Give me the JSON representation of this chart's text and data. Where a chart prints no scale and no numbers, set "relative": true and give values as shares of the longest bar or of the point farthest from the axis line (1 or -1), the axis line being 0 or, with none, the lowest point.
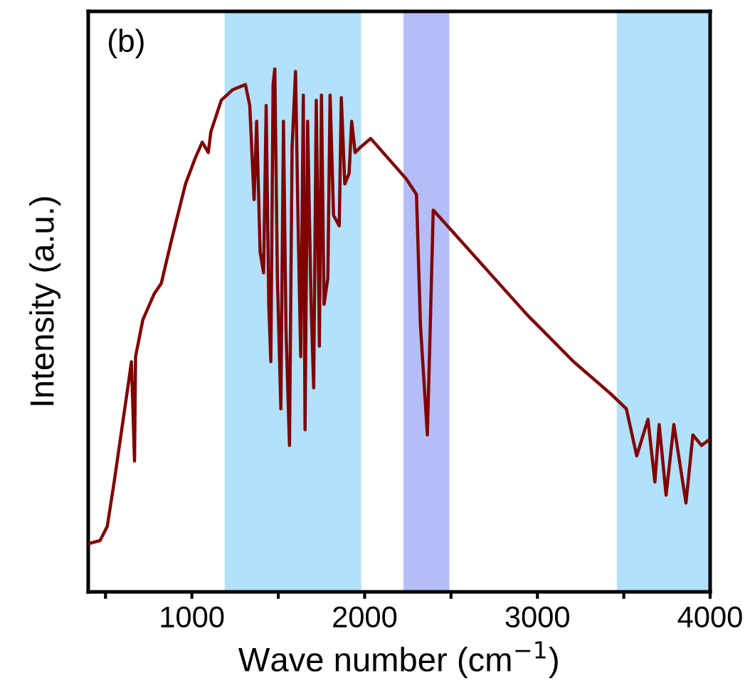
{
  "chart_data": {
    "type": "line",
    "relative": true,
    "xlabel": "Wave number (cm$^{−1}$)",
    "ylabel": "Intensity (a.u.)",
    "annotations": [
      "(b)"
    ],
    "xlim": [
      400,
      4000
    ],
    "xticks": [
      {
        "value": 500,
        "label": null
      },
      1000,
      {
        "value": 1500,
        "label": null
      },
      2000,
      {
        "value": 2500,
        "label": null
      },
      3000,
      {
        "value": 3500,
        "label": null
      },
      4000
    ],
    "tick_labels": "x",
    "grid": false,
    "legend": false,
    "bands": [
      {
        "axis": "x",
        "from": 1190,
        "to": 1980,
        "color": "#b3e0fb"
      },
      {
        "axis": "x",
        "from": 2225,
        "to": 2490,
        "color": "#b5bdf7"
      },
      {
        "axis": "x",
        "from": 3460,
        "to": 4000,
        "color": "#b3e0fb"
      }
    ],
    "series": [
      {
        "color": "#800000",
        "x": [
          400,
          468,
          510,
          550,
          633,
          650,
          668,
          674,
          716,
          782,
          823,
          880,
          963,
          1020,
          1060,
          1095,
          1110,
          1170,
          1235,
          1310,
          1335,
          1360,
          1375,
          1395,
          1415,
          1430,
          1445,
          1457,
          1470,
          1480,
          1495,
          1515,
          1530,
          1545,
          1565,
          1580,
          1600,
          1615,
          1630,
          1645,
          1655,
          1670,
          1690,
          1705,
          1720,
          1738,
          1750,
          1765,
          1787,
          1800,
          1820,
          1853,
          1865,
          1885,
          1910,
          1925,
          1945,
          1975,
          2035,
          2240,
          2300,
          2323,
          2363,
          2380,
          2397,
          2940,
          3210,
          3420,
          3515,
          3575,
          3640,
          3680,
          3705,
          3745,
          3790,
          3860,
          3900,
          3950,
          3990
        ],
        "values": [
          0.092,
          0.098,
          0.125,
          0.21,
          0.4,
          0.44,
          0.25,
          0.45,
          0.52,
          0.57,
          0.59,
          0.67,
          0.78,
          0.83,
          0.86,
          0.84,
          0.88,
          0.94,
          0.96,
          0.97,
          0.93,
          0.75,
          0.9,
          0.65,
          0.61,
          0.93,
          0.55,
          0.44,
          0.97,
          1.0,
          0.6,
          0.35,
          0.9,
          0.5,
          0.28,
          0.85,
          0.995,
          0.7,
          0.45,
          0.95,
          0.31,
          0.9,
          0.55,
          0.39,
          0.94,
          0.47,
          0.95,
          0.55,
          0.6,
          0.95,
          0.72,
          0.7,
          0.945,
          0.78,
          0.8,
          0.9,
          0.84,
          0.85,
          0.867,
          0.79,
          0.76,
          0.51,
          0.3,
          0.51,
          0.73,
          0.53,
          0.44,
          0.38,
          0.35,
          0.26,
          0.33,
          0.21,
          0.32,
          0.185,
          0.32,
          0.17,
          0.3,
          0.28,
          0.29
        ]
      }
    ]
  }
}
